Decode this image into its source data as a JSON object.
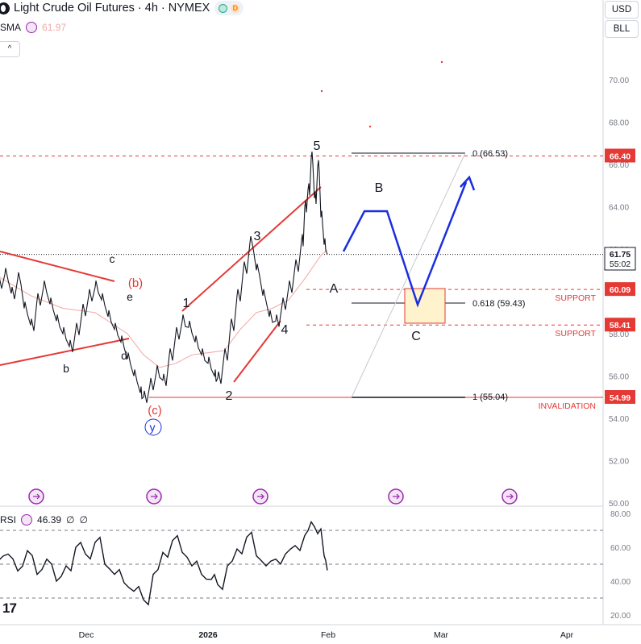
{
  "header": {
    "symbol": "Light Crude Oil Futures",
    "interval": "4h",
    "exchange": "NYMEX",
    "status_badge": "D",
    "sma_label": "SMA",
    "sma_value": "61.97",
    "rsi_label": "RSI",
    "rsi_value": "46.39",
    "rsi_extra1": "∅",
    "rsi_extra2": "∅",
    "currency_button": "USD",
    "symbol_button": "BLL",
    "collapse_glyph": "^",
    "tv_logo": "17"
  },
  "chart_data": {
    "type": "line",
    "series_name": "Light Crude Oil Futures 4h",
    "x_ticks": [
      "Dec",
      "2026",
      "Feb",
      "Mar",
      "Apr"
    ],
    "y_ticks": [
      50,
      52,
      54,
      56,
      58,
      60,
      62,
      64,
      66,
      68,
      70
    ],
    "ylim": [
      49.9,
      73.3
    ],
    "price_levels": [
      {
        "label": "66.40",
        "value": 66.4
      },
      {
        "label": "60.09",
        "value": 60.09
      },
      {
        "label": "58.41",
        "value": 58.41
      },
      {
        "label": "54.99",
        "value": 54.99
      }
    ],
    "current_price": {
      "label": "61.75",
      "timer": "55:02",
      "value": 61.75
    },
    "fib_levels": [
      {
        "label": "0 (66.53)",
        "value": 66.53
      },
      {
        "label": "0.618 (59.43)",
        "value": 59.43
      },
      {
        "label": "1 (55.04)",
        "value": 55.04
      }
    ],
    "zone_labels": [
      "SUPPORT",
      "SUPPORT",
      "INVALIDATION"
    ],
    "wave_labels": [
      "c",
      "(b)",
      "e",
      "b",
      "d",
      "(c)",
      "y",
      "1",
      "2",
      "3",
      "4",
      "5",
      "A",
      "B",
      "C"
    ],
    "price_path": [
      [
        0,
        60.4
      ],
      [
        2,
        60.8
      ],
      [
        4,
        59.9
      ],
      [
        6,
        60.6
      ],
      [
        8,
        59.2
      ],
      [
        10,
        58.4
      ],
      [
        12,
        59.6
      ],
      [
        14,
        60.2
      ],
      [
        16,
        59.4
      ],
      [
        18,
        58.6
      ],
      [
        20,
        58.0
      ],
      [
        22,
        57.4
      ],
      [
        24,
        58.2
      ],
      [
        26,
        59.1
      ],
      [
        28,
        59.8
      ],
      [
        30,
        60.2
      ],
      [
        32,
        59.6
      ],
      [
        34,
        58.8
      ],
      [
        36,
        58.2
      ],
      [
        38,
        57.6
      ],
      [
        40,
        56.8
      ],
      [
        42,
        56.0
      ],
      [
        44,
        55.2
      ],
      [
        45,
        55.0
      ],
      [
        47,
        55.6
      ],
      [
        49,
        56.2
      ],
      [
        51,
        55.8
      ],
      [
        53,
        57.0
      ],
      [
        55,
        58.0
      ],
      [
        57,
        58.6
      ],
      [
        59,
        58.3
      ],
      [
        61,
        57.6
      ],
      [
        63,
        57.0
      ],
      [
        65,
        56.6
      ],
      [
        67,
        56.0
      ],
      [
        68,
        55.9
      ],
      [
        70,
        57.0
      ],
      [
        72,
        58.4
      ],
      [
        74,
        59.8
      ],
      [
        76,
        61.1
      ],
      [
        78,
        62.3
      ],
      [
        80,
        61.0
      ],
      [
        82,
        59.8
      ],
      [
        84,
        58.8
      ],
      [
        86,
        58.6
      ],
      [
        88,
        59.4
      ],
      [
        90,
        60.2
      ],
      [
        92,
        61.2
      ],
      [
        94,
        62.4
      ],
      [
        95,
        64.0
      ],
      [
        96,
        64.8
      ],
      [
        97,
        66.3
      ],
      [
        98,
        64.4
      ],
      [
        99,
        65.9
      ],
      [
        100,
        63.5
      ],
      [
        101,
        62.2
      ],
      [
        102,
        61.75
      ]
    ],
    "sma_path": [
      [
        0,
        60.7
      ],
      [
        10,
        59.8
      ],
      [
        20,
        59.2
      ],
      [
        30,
        59.0
      ],
      [
        40,
        58.0
      ],
      [
        45,
        57.0
      ],
      [
        50,
        56.4
      ],
      [
        55,
        56.6
      ],
      [
        60,
        57.0
      ],
      [
        65,
        57.1
      ],
      [
        70,
        57.2
      ],
      [
        75,
        58.2
      ],
      [
        80,
        59.0
      ],
      [
        85,
        59.2
      ],
      [
        90,
        59.6
      ],
      [
        95,
        60.6
      ],
      [
        100,
        61.7
      ],
      [
        102,
        61.97
      ]
    ],
    "rsi": {
      "levels": [
        70,
        50,
        30
      ],
      "ylim": [
        20,
        80
      ],
      "y_ticks": [
        20,
        40,
        60,
        80
      ],
      "path": [
        [
          0,
          52
        ],
        [
          3,
          56
        ],
        [
          6,
          46
        ],
        [
          9,
          58
        ],
        [
          12,
          44
        ],
        [
          15,
          53
        ],
        [
          18,
          40
        ],
        [
          21,
          49
        ],
        [
          24,
          60
        ],
        [
          27,
          56
        ],
        [
          30,
          63
        ],
        [
          33,
          50
        ],
        [
          36,
          44
        ],
        [
          39,
          39
        ],
        [
          42,
          34
        ],
        [
          45,
          29
        ],
        [
          48,
          44
        ],
        [
          51,
          57
        ],
        [
          54,
          64
        ],
        [
          57,
          57
        ],
        [
          60,
          49
        ],
        [
          63,
          44
        ],
        [
          66,
          41
        ],
        [
          68,
          38
        ],
        [
          71,
          49
        ],
        [
          74,
          59
        ],
        [
          77,
          66
        ],
        [
          80,
          55
        ],
        [
          83,
          49
        ],
        [
          86,
          53
        ],
        [
          89,
          56
        ],
        [
          92,
          61
        ],
        [
          95,
          67
        ],
        [
          97,
          75
        ],
        [
          99,
          68
        ],
        [
          101,
          55
        ],
        [
          102,
          46.39
        ]
      ]
    }
  }
}
